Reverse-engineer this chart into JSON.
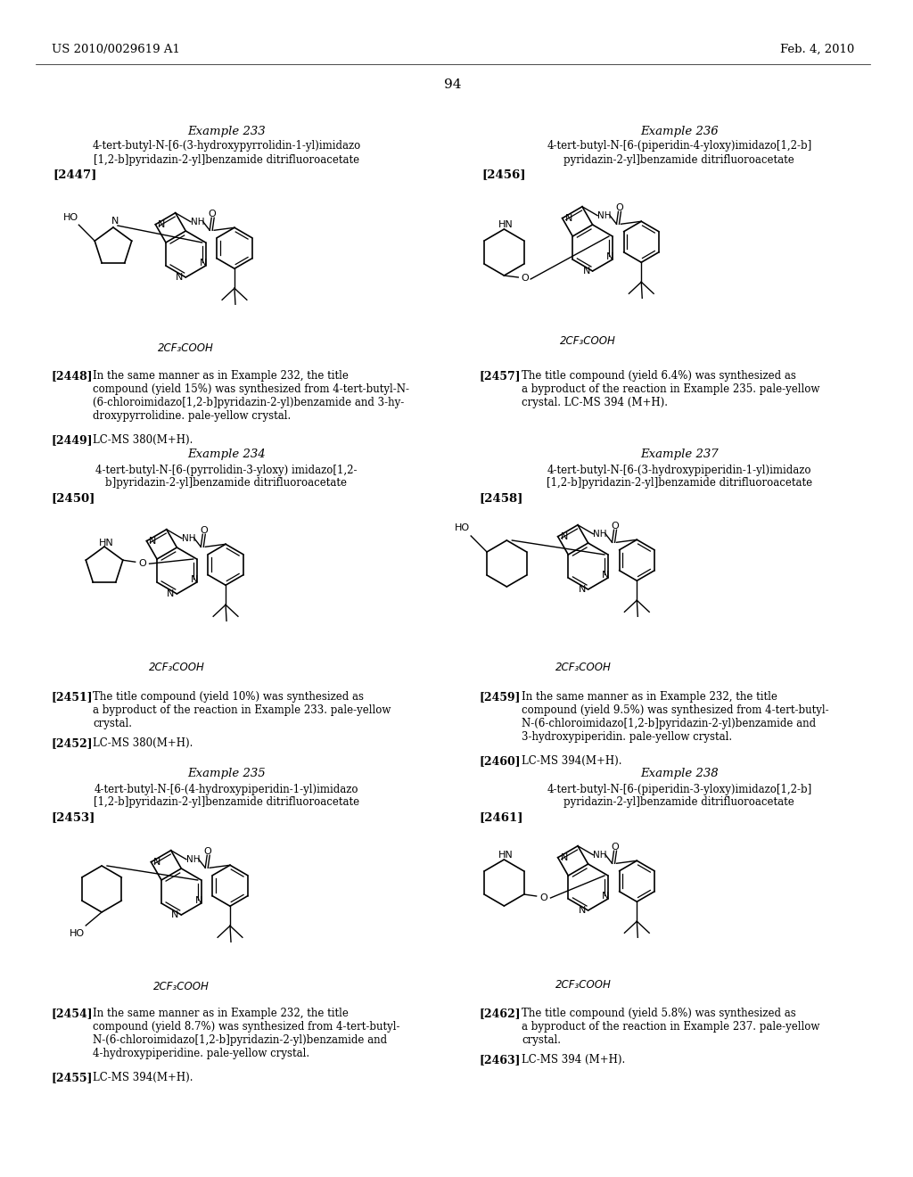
{
  "header_left": "US 2010/0029619 A1",
  "header_right": "Feb. 4, 2010",
  "page_number": "94",
  "bg": "#ffffff",
  "fg": "#000000"
}
